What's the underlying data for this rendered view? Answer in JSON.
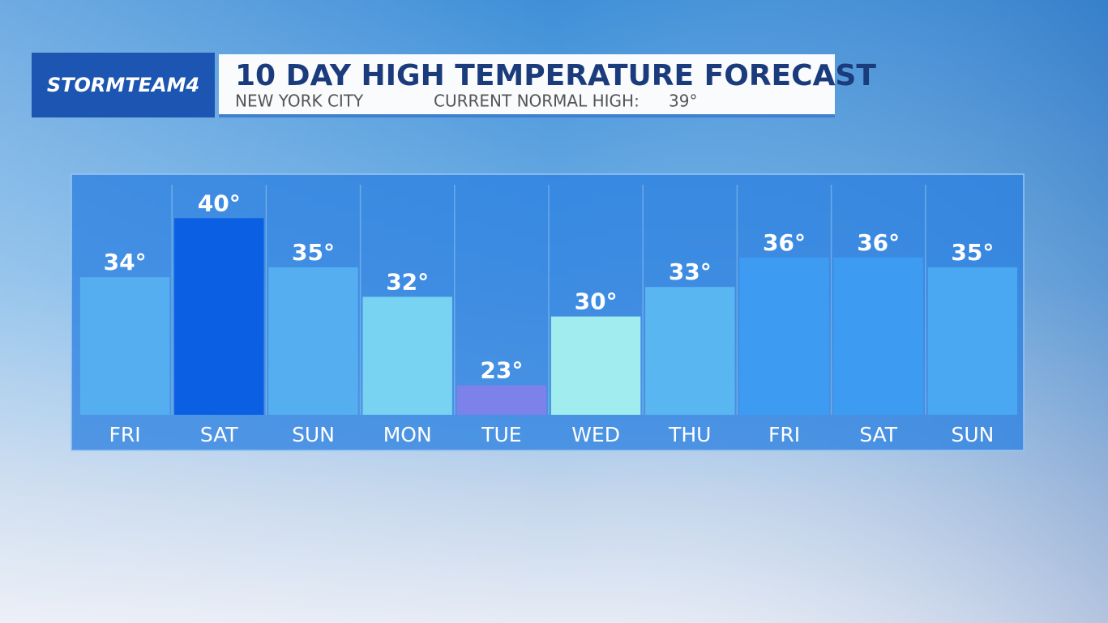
{
  "brand": "STORMTEAM4",
  "chart_data": {
    "type": "bar",
    "title": "10 DAY HIGH TEMPERATURE FORECAST",
    "subtitle": "NEW YORK CITY",
    "normal_high_label": "CURRENT NORMAL HIGH:",
    "normal_high": "39°",
    "categories": [
      "FRI",
      "SAT",
      "SUN",
      "MON",
      "TUE",
      "WED",
      "THU",
      "FRI",
      "SAT",
      "SUN"
    ],
    "values": [
      34,
      40,
      35,
      32,
      23,
      30,
      33,
      36,
      36,
      35
    ],
    "value_labels": [
      "34°",
      "40°",
      "35°",
      "32°",
      "23°",
      "30°",
      "33°",
      "36°",
      "36°",
      "35°"
    ],
    "colors": [
      "#55aef0",
      "#0a5fe2",
      "#55aef0",
      "#78d2f2",
      "#7d82ea",
      "#a0ecee",
      "#5ab6f0",
      "#3d9cf2",
      "#3d9cf2",
      "#4aa7f2"
    ],
    "ylim": [
      20,
      43.4
    ]
  }
}
